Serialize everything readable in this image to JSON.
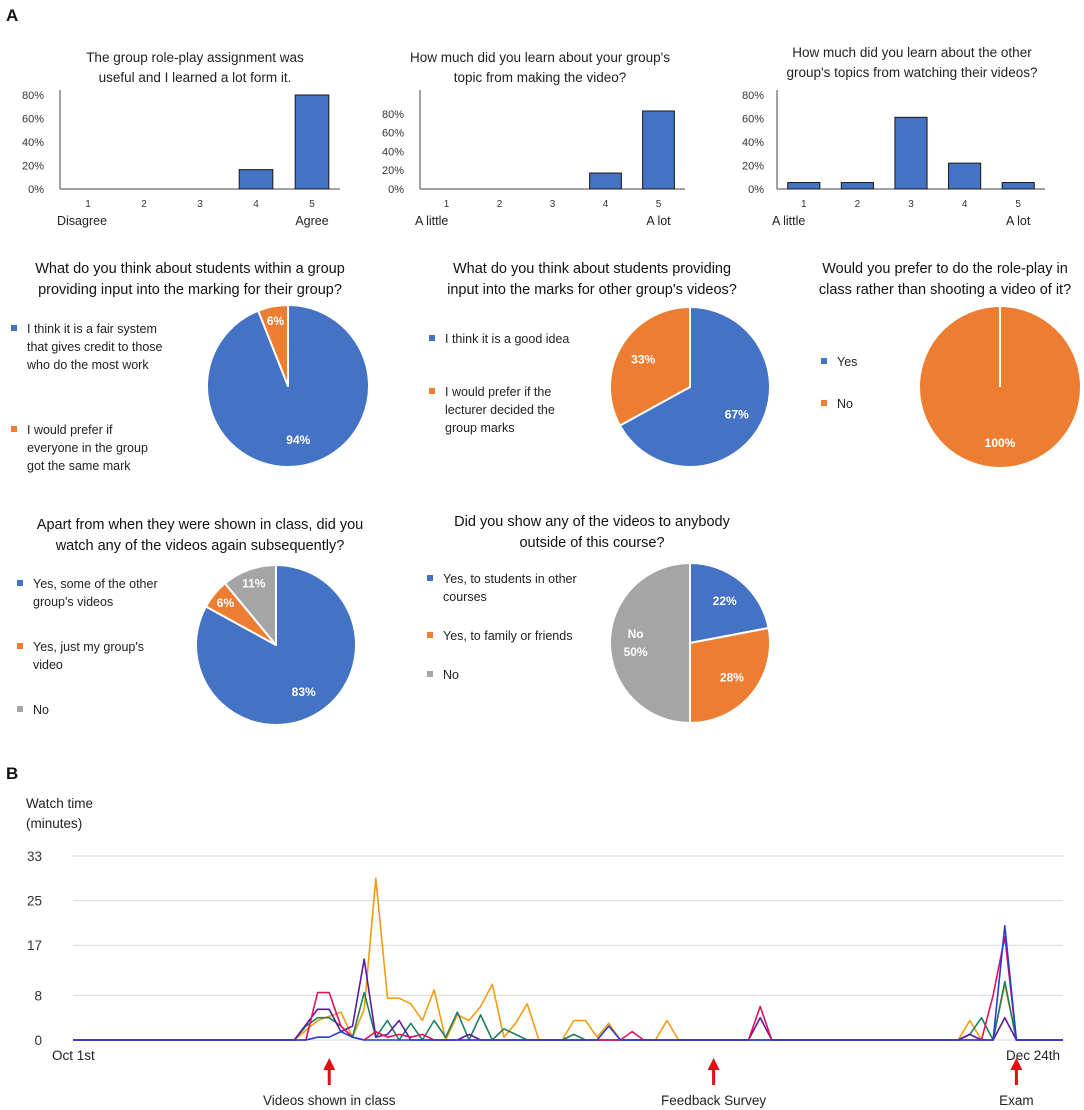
{
  "panels": {
    "a": "A",
    "b": "B"
  },
  "colors": {
    "blue": "#4472C4",
    "orange": "#ED7D31",
    "gray": "#A5A5A5",
    "line_orange": "#F39C12",
    "line_green": "#1E7F5C",
    "line_purple": "#5B1A9E",
    "line_red": "#E0115F",
    "line_blue": "#1F3FD8",
    "arrow": "#E01010"
  },
  "chart_data": [
    {
      "type": "bar",
      "title_lines": [
        "The group role-play assignment was",
        "useful and I learned a lot form it."
      ],
      "categories": [
        "1",
        "2",
        "3",
        "4",
        "5"
      ],
      "values": [
        0,
        0,
        0,
        16.5,
        80
      ],
      "yticks": [
        "0%",
        "20%",
        "40%",
        "60%",
        "80%"
      ],
      "ylim": [
        0,
        80
      ],
      "left_label": "Disagree",
      "right_label": "Agree"
    },
    {
      "type": "bar",
      "title_lines": [
        "How much did you learn about your group's",
        "topic from making the video?"
      ],
      "categories": [
        "1",
        "2",
        "3",
        "4",
        "5"
      ],
      "values": [
        0,
        0,
        0,
        17,
        83
      ],
      "yticks": [
        "0%",
        "20%",
        "40%",
        "60%",
        "80%"
      ],
      "ylim": [
        0,
        100
      ],
      "left_label": "A little",
      "right_label": "A lot"
    },
    {
      "type": "bar",
      "title_lines": [
        "How much did you learn about the other",
        "group's topics from watching their videos?"
      ],
      "categories": [
        "1",
        "2",
        "3",
        "4",
        "5"
      ],
      "values": [
        5.5,
        5.5,
        61,
        22,
        5.5
      ],
      "yticks": [
        "0%",
        "20%",
        "40%",
        "60%",
        "80%"
      ],
      "ylim": [
        0,
        80
      ],
      "left_label": "A little",
      "right_label": "A lot"
    },
    {
      "type": "pie",
      "title_lines": [
        "What do you think about students within a group",
        "providing input into the marking for their group?"
      ],
      "legend": [
        [
          "I think it is a fair system",
          "that gives credit to those",
          "who do the most work"
        ],
        [
          "I would prefer if",
          "everyone in the group",
          "got the same mark"
        ]
      ],
      "slices": [
        {
          "label": "94%",
          "value": 94,
          "color": "blue"
        },
        {
          "label": "6%",
          "value": 6,
          "color": "orange"
        }
      ]
    },
    {
      "type": "pie",
      "title_lines": [
        "What do you think about students providing",
        "input into the marks for other group's videos?"
      ],
      "legend": [
        [
          "I think it is a good idea"
        ],
        [
          "I would prefer if the",
          "lecturer decided the",
          "group marks"
        ]
      ],
      "slices": [
        {
          "label": "67%",
          "value": 67,
          "color": "blue"
        },
        {
          "label": "33%",
          "value": 33,
          "color": "orange"
        }
      ]
    },
    {
      "type": "pie",
      "title_lines": [
        "Would you prefer to do the role-play in",
        "class rather than shooting a video of it?"
      ],
      "legend": [
        [
          "Yes"
        ],
        [
          "No"
        ]
      ],
      "slices": [
        {
          "label": "",
          "value": 0,
          "color": "blue"
        },
        {
          "label": "100%",
          "value": 100,
          "color": "orange"
        }
      ]
    },
    {
      "type": "pie",
      "title_lines": [
        "Apart from when they were shown in class, did you",
        "watch any of the videos again subsequently?"
      ],
      "legend": [
        [
          "Yes, some of the other",
          "group's videos"
        ],
        [
          "Yes, just my group's",
          "video"
        ],
        [
          "No"
        ]
      ],
      "slices": [
        {
          "label": "83%",
          "value": 83,
          "color": "blue"
        },
        {
          "label": "6%",
          "value": 6,
          "color": "orange"
        },
        {
          "label": "11%",
          "value": 11,
          "color": "gray"
        }
      ]
    },
    {
      "type": "pie",
      "title_lines": [
        "Did you show any of the videos to anybody",
        "outside of this course?"
      ],
      "legend": [
        [
          "Yes, to students in other",
          "courses"
        ],
        [
          "Yes, to family or friends"
        ],
        [
          "No"
        ]
      ],
      "slices": [
        {
          "label": "22%",
          "value": 22,
          "color": "blue"
        },
        {
          "label": "28%",
          "value": 28,
          "color": "orange"
        },
        {
          "label": "No|50%",
          "value": 50,
          "color": "gray"
        }
      ]
    },
    {
      "type": "line",
      "ylabel_lines": [
        "Watch time",
        "(minutes)"
      ],
      "yticks": [
        0,
        8,
        17,
        25,
        33
      ],
      "ylim": [
        0,
        33
      ],
      "x_start_label": "Oct 1st",
      "x_end_label": "Dec 24th",
      "n_days": 85,
      "annotations": [
        {
          "text": "Videos shown in class",
          "day": 22
        },
        {
          "text": "Feedback Survey",
          "day": 55
        },
        {
          "text": "Exam",
          "day": 81
        }
      ],
      "series": [
        {
          "name": "orange",
          "color": "line_orange",
          "points": [
            [
              0,
              0
            ],
            [
              19,
              0
            ],
            [
              21,
              3.5
            ],
            [
              23,
              5
            ],
            [
              24,
              0.5
            ],
            [
              25,
              5.5
            ],
            [
              26,
              29
            ],
            [
              27,
              7.5
            ],
            [
              28,
              7.5
            ],
            [
              29,
              6.5
            ],
            [
              30,
              3.5
            ],
            [
              31,
              9
            ],
            [
              32,
              0
            ],
            [
              33,
              4.5
            ],
            [
              34,
              3.5
            ],
            [
              35,
              6
            ],
            [
              36,
              10
            ],
            [
              37,
              0.5
            ],
            [
              38,
              3
            ],
            [
              39,
              6.5
            ],
            [
              40,
              0
            ],
            [
              42,
              0
            ],
            [
              43,
              3.5
            ],
            [
              44,
              3.5
            ],
            [
              45,
              0.5
            ],
            [
              46,
              3
            ],
            [
              47,
              0
            ],
            [
              50,
              0
            ],
            [
              51,
              3.5
            ],
            [
              52,
              0
            ],
            [
              76,
              0
            ],
            [
              77,
              3.5
            ],
            [
              78,
              0
            ],
            [
              79,
              0
            ],
            [
              80,
              10
            ],
            [
              81,
              0
            ],
            [
              85,
              0
            ]
          ]
        },
        {
          "name": "green",
          "color": "line_green",
          "points": [
            [
              0,
              0
            ],
            [
              19,
              0
            ],
            [
              20,
              2.5
            ],
            [
              21,
              4
            ],
            [
              22,
              4
            ],
            [
              23,
              2.5
            ],
            [
              24,
              0.5
            ],
            [
              25,
              8.5
            ],
            [
              26,
              0.5
            ],
            [
              27,
              3.5
            ],
            [
              28,
              0
            ],
            [
              29,
              3
            ],
            [
              30,
              0
            ],
            [
              31,
              3.5
            ],
            [
              32,
              0.5
            ],
            [
              33,
              5
            ],
            [
              34,
              0
            ],
            [
              35,
              4.5
            ],
            [
              36,
              0
            ],
            [
              37,
              2
            ],
            [
              38,
              1
            ],
            [
              39,
              0
            ],
            [
              42,
              0
            ],
            [
              43,
              1
            ],
            [
              44,
              0
            ],
            [
              76,
              0
            ],
            [
              77,
              1
            ],
            [
              78,
              4
            ],
            [
              79,
              0
            ],
            [
              80,
              10.5
            ],
            [
              81,
              0
            ],
            [
              85,
              0
            ]
          ]
        },
        {
          "name": "purple",
          "color": "line_purple",
          "points": [
            [
              0,
              0
            ],
            [
              19,
              0
            ],
            [
              21,
              5.5
            ],
            [
              22,
              5.5
            ],
            [
              23,
              1.5
            ],
            [
              24,
              2.5
            ],
            [
              25,
              14.5
            ],
            [
              26,
              0.5
            ],
            [
              27,
              1
            ],
            [
              28,
              3.5
            ],
            [
              29,
              0
            ],
            [
              33,
              0
            ],
            [
              34,
              1
            ],
            [
              35,
              0
            ],
            [
              58,
              0
            ],
            [
              59,
              4
            ],
            [
              60,
              0
            ],
            [
              76,
              0
            ],
            [
              77,
              1
            ],
            [
              78,
              0
            ],
            [
              79,
              0
            ],
            [
              80,
              4
            ],
            [
              81,
              0
            ],
            [
              85,
              0
            ]
          ]
        },
        {
          "name": "red",
          "color": "line_red",
          "points": [
            [
              0,
              0
            ],
            [
              20,
              0
            ],
            [
              21,
              8.5
            ],
            [
              22,
              8.5
            ],
            [
              23,
              2.5
            ],
            [
              24,
              0.5
            ],
            [
              25,
              0
            ],
            [
              26,
              1.5
            ],
            [
              27,
              0.5
            ],
            [
              28,
              1
            ],
            [
              29,
              0.5
            ],
            [
              30,
              1
            ],
            [
              31,
              0
            ],
            [
              47,
              0
            ],
            [
              48,
              1.5
            ],
            [
              49,
              0
            ],
            [
              58,
              0
            ],
            [
              59,
              6
            ],
            [
              60,
              0
            ],
            [
              78,
              0
            ],
            [
              79,
              8
            ],
            [
              80,
              18.5
            ],
            [
              81,
              0
            ],
            [
              85,
              0
            ]
          ]
        },
        {
          "name": "blue",
          "color": "line_blue",
          "points": [
            [
              0,
              0
            ],
            [
              20,
              0
            ],
            [
              21,
              0.5
            ],
            [
              22,
              0.5
            ],
            [
              23,
              1.5
            ],
            [
              24,
              0.5
            ],
            [
              25,
              0
            ],
            [
              45,
              0
            ],
            [
              46,
              2.5
            ],
            [
              47,
              0
            ],
            [
              79,
              0
            ],
            [
              80,
              20.5
            ],
            [
              81,
              0
            ],
            [
              85,
              0
            ]
          ]
        }
      ]
    }
  ]
}
